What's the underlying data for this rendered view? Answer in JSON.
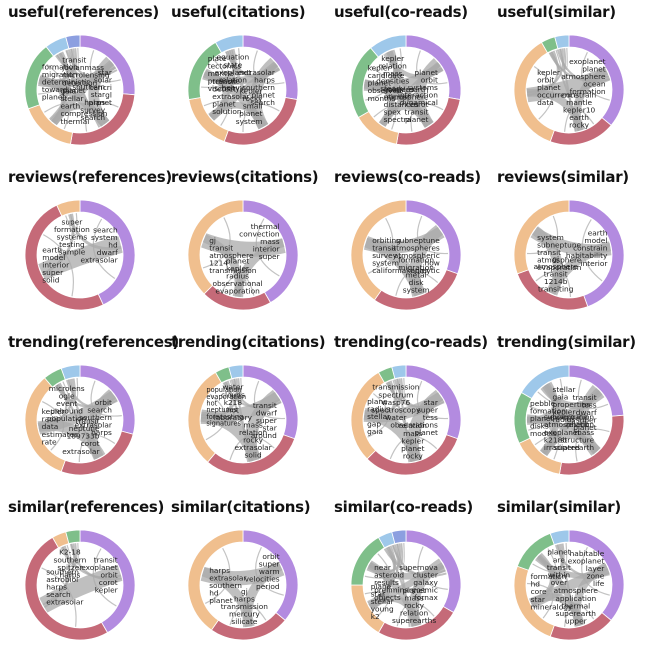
{
  "colors": {
    "purple": "#b38be0",
    "red": "#c56a78",
    "orange": "#f0bf8e",
    "green": "#7fbf8a",
    "blue": "#9ec8ea",
    "indigo": "#8c9fe0",
    "chord": "#aaaaaa"
  },
  "panels": [
    {
      "title": "useful(references)",
      "segments": [
        [
          "purple",
          0,
          95
        ],
        [
          "red",
          95,
          190
        ],
        [
          "orange",
          190,
          250
        ],
        [
          "green",
          250,
          322
        ],
        [
          "blue",
          322,
          345
        ],
        [
          "indigo",
          345,
          360
        ]
      ],
      "labels": [
        {
          "lines": [
            "star",
            "solar",
            "cancri",
            "gl",
            "planet"
          ],
          "a": 55
        },
        {
          "lines": [
            "southern",
            "star",
            "harps",
            "survey",
            "search"
          ],
          "a": 140
        },
        {
          "lines": [
            "gaia",
            "stellar",
            "earth",
            "compression",
            "thermal"
          ],
          "a": 210
        },
        {
          "lines": [
            "formation",
            "migration",
            "deterministic",
            "toward",
            "planet"
          ],
          "a": 282
        },
        {
          "lines": [
            "transit",
            "jovianmass",
            "microlensing",
            "detection",
            "planet"
          ],
          "a": 333
        }
      ]
    },
    {
      "title": "useful(citations)",
      "segments": [
        [
          "purple",
          0,
          100
        ],
        [
          "red",
          100,
          200
        ],
        [
          "orange",
          200,
          260
        ],
        [
          "green",
          260,
          330
        ],
        [
          "blue",
          330,
          360
        ]
      ],
      "labels": [
        {
          "lines": [
            "extrasolar",
            "harps",
            "southern",
            "planet",
            "search"
          ],
          "a": 55
        },
        {
          "lines": [
            "kepler",
            "rocky",
            "small",
            "planet",
            "system"
          ],
          "a": 150
        },
        {
          "lines": [
            "transit",
            "detect",
            "extrasolar",
            "planet",
            "solution"
          ],
          "a": 232
        },
        {
          "lines": [
            "plate",
            "tectonics",
            "mantle",
            "pressure",
            "viscosity"
          ],
          "a": 295
        },
        {
          "lines": [
            "equation",
            "state",
            "exoplanet",
            "relation",
            "heavy"
          ],
          "a": 345
        }
      ]
    },
    {
      "title": "useful(co-reads)",
      "segments": [
        [
          "purple",
          0,
          100
        ],
        [
          "red",
          100,
          190
        ],
        [
          "orange",
          190,
          240
        ],
        [
          "green",
          240,
          320
        ],
        [
          "blue",
          320,
          360
        ]
      ],
      "labels": [
        {
          "lines": [
            "planet",
            "orbit",
            "systems",
            "interaction",
            "dynamical"
          ],
          "a": 55
        },
        {
          "lines": [
            "superearth",
            "atmosphere",
            "corot",
            "transit",
            "planet"
          ],
          "a": 145
        },
        {
          "lines": [
            "galaxies",
            "micron",
            "distances",
            "spex",
            "spectra"
          ],
          "a": 215
        },
        {
          "lines": [
            "kepler",
            "candidate",
            "planet",
            "observed",
            "months"
          ],
          "a": 280
        },
        {
          "lines": [
            "kepler",
            "relation",
            "mass",
            "densities",
            "steady"
          ],
          "a": 340
        }
      ]
    },
    {
      "title": "useful(similar)",
      "segments": [
        [
          "purple",
          0,
          130
        ],
        [
          "red",
          130,
          200
        ],
        [
          "orange",
          200,
          330
        ],
        [
          "green",
          330,
          345
        ],
        [
          "blue",
          345,
          360
        ]
      ],
      "labels": [
        {
          "lines": [
            "exoplanet",
            "planet",
            "atmosphere",
            "ocean",
            "formation"
          ],
          "a": 70
        },
        {
          "lines": [
            "constrain",
            "mantle",
            "kepler10",
            "earth",
            "rocky"
          ],
          "a": 165
        },
        {
          "lines": [
            "kepler",
            "orbit",
            "planet",
            "occurrence",
            "data"
          ],
          "a": 305
        }
      ]
    },
    {
      "title": "reviews(references)",
      "segments": [
        [
          "purple",
          0,
          155
        ],
        [
          "red",
          155,
          335
        ],
        [
          "orange",
          335,
          360
        ]
      ],
      "labels": [
        {
          "lines": [
            "search",
            "system",
            "hd",
            "dwarf",
            "extrasolar"
          ],
          "a": 75
        },
        {
          "lines": [
            "earth",
            "model",
            "interior",
            "super",
            "solid"
          ],
          "a": 255
        },
        {
          "lines": [
            "super",
            "formation",
            "systems",
            "testing",
            "sample"
          ],
          "a": 348
        }
      ]
    },
    {
      "title": "reviews(citations)",
      "segments": [
        [
          "purple",
          0,
          150
        ],
        [
          "red",
          150,
          225
        ],
        [
          "orange",
          225,
          360
        ]
      ],
      "labels": [
        {
          "lines": [
            "thermal",
            "convection",
            "mass",
            "interior",
            "super"
          ],
          "a": 70
        },
        {
          "lines": [
            "planet",
            "kepler",
            "radius",
            "observational",
            "evaporation"
          ],
          "a": 188
        },
        {
          "lines": [
            "gj",
            "transit",
            "atmosphere",
            "1214",
            "transmission"
          ],
          "a": 300
        }
      ]
    },
    {
      "title": "reviews(co-reads)",
      "segments": [
        [
          "purple",
          0,
          110
        ],
        [
          "red",
          110,
          215
        ],
        [
          "orange",
          215,
          360
        ]
      ],
      "labels": [
        {
          "lines": [
            "subneptune",
            "atmospheres",
            "atmospheric",
            "how",
            "analytic"
          ],
          "a": 60
        },
        {
          "lines": [
            "formation",
            "migration",
            "metal",
            "disk",
            "system"
          ],
          "a": 165
        },
        {
          "lines": [
            "orbiting",
            "transit",
            "survey",
            "system",
            "californiakepler"
          ],
          "a": 300
        }
      ]
    },
    {
      "title": "reviews(similar)",
      "segments": [
        [
          "purple",
          0,
          160
        ],
        [
          "red",
          160,
          250
        ],
        [
          "orange",
          250,
          360
        ]
      ],
      "labels": [
        {
          "lines": [
            "earth",
            "model",
            "constrain",
            "habitability",
            "interior"
          ],
          "a": 80
        },
        {
          "lines": [
            "gj",
            "atmosphere",
            "transit",
            "1214b",
            "transiting"
          ],
          "a": 200
        },
        {
          "lines": [
            "system",
            "subneptune",
            "transit",
            "atmosphere",
            "evaporation"
          ],
          "a": 305
        }
      ]
    },
    {
      "title": "trending(references)",
      "segments": [
        [
          "purple",
          0,
          105
        ],
        [
          "red",
          105,
          200
        ],
        [
          "orange",
          200,
          320
        ],
        [
          "green",
          320,
          340
        ],
        [
          "blue",
          340,
          360
        ]
      ],
      "labels": [
        {
          "lines": [
            "orbit",
            "search",
            "southern",
            "extrasolar",
            "harps"
          ],
          "a": 55
        },
        {
          "lines": [
            "transit",
            "neptune",
            "189733b",
            "corot",
            "extrasolar"
          ],
          "a": 150
        },
        {
          "lines": [
            "kepler",
            "radii",
            "data",
            "estimates",
            "rate"
          ],
          "a": 260
        },
        {
          "lines": [
            "microlens",
            "ogle",
            "event",
            "unbound",
            "population"
          ],
          "a": 340
        }
      ]
    },
    {
      "title": "trending(citations)",
      "segments": [
        [
          "purple",
          0,
          110
        ],
        [
          "red",
          110,
          220
        ],
        [
          "orange",
          220,
          330
        ],
        [
          "green",
          330,
          345
        ],
        [
          "blue",
          345,
          360
        ]
      ],
      "labels": [
        {
          "lines": [
            "transit",
            "dwarf",
            "super",
            "star",
            "around"
          ],
          "a": 60
        },
        {
          "lines": [
            "mass",
            "relation",
            "rocky",
            "extrasolar",
            "solid"
          ],
          "a": 165
        },
        {
          "lines": [
            "population",
            "evaporation",
            "hot",
            "neptunes",
            "forecasting",
            "signatures"
          ],
          "a": 290
        },
        {
          "lines": [
            "water",
            "clouds",
            "k218",
            "hot",
            "laboratory"
          ],
          "a": 345
        }
      ]
    },
    {
      "title": "trending(co-reads)",
      "segments": [
        [
          "purple",
          0,
          110
        ],
        [
          "red",
          110,
          225
        ],
        [
          "orange",
          225,
          330
        ],
        [
          "green",
          330,
          345
        ],
        [
          "blue",
          345,
          360
        ]
      ],
      "labels": [
        {
          "lines": [
            "star",
            "super",
            "tess",
            "observations",
            "planet"
          ],
          "a": 55
        },
        {
          "lines": [
            "relation",
            "mass",
            "kepler",
            "planet",
            "rocky"
          ],
          "a": 170
        },
        {
          "lines": [
            "plane",
            "radius",
            "stellar",
            "gap",
            "gaia"
          ],
          "a": 275
        },
        {
          "lines": [
            "transmission",
            "spectrum",
            "wasp76",
            "spectroscopy",
            "water"
          ],
          "a": 345
        }
      ]
    },
    {
      "title": "trending(similar)",
      "segments": [
        [
          "purple",
          0,
          85
        ],
        [
          "red",
          85,
          190
        ],
        [
          "orange",
          190,
          245
        ],
        [
          "green",
          245,
          300
        ],
        [
          "blue",
          300,
          360
        ]
      ],
      "labels": [
        {
          "lines": [
            "transit",
            "tess",
            "dwarf",
            "super",
            "planet"
          ],
          "a": 45
        },
        {
          "lines": [
            "evaporation",
            "relation",
            "mass",
            "structure",
            "superearth"
          ],
          "a": 140
        },
        {
          "lines": [
            "subneptune",
            "atmospheric",
            "exoplanet",
            "k218b",
            "irradiated"
          ],
          "a": 220
        },
        {
          "lines": [
            "pebble",
            "formation",
            "planet",
            "disks",
            "models"
          ],
          "a": 272
        },
        {
          "lines": [
            "stellar",
            "gaia",
            "properties",
            "kepler",
            "radius"
          ],
          "a": 335
        }
      ]
    },
    {
      "title": "similar(references)",
      "segments": [
        [
          "purple",
          0,
          150
        ],
        [
          "red",
          150,
          330
        ],
        [
          "orange",
          330,
          345
        ],
        [
          "green",
          345,
          360
        ]
      ],
      "labels": [
        {
          "lines": [
            "transit",
            "exoplanet",
            "orbit",
            "corot",
            "kepler"
          ],
          "a": 75
        },
        {
          "lines": [
            "southern",
            "astrobiol",
            "harps",
            "search",
            "extrasolar"
          ],
          "a": 240
        },
        {
          "lines": [
            "K2-18",
            "southern",
            "spitzer",
            "harps"
          ],
          "a": 345
        }
      ]
    },
    {
      "title": "similar(citations)",
      "segments": [
        [
          "purple",
          0,
          130
        ],
        [
          "red",
          130,
          215
        ],
        [
          "orange",
          215,
          360
        ]
      ],
      "labels": [
        {
          "lines": [
            "orbit",
            "super",
            "warm",
            "velocities",
            "period"
          ],
          "a": 70
        },
        {
          "lines": [
            "gj",
            "harps",
            "transmission",
            "mercury",
            "silicate"
          ],
          "a": 178
        },
        {
          "lines": [
            "harps",
            "extrasolar",
            "southern",
            "hd",
            "planet"
          ],
          "a": 300
        }
      ]
    },
    {
      "title": "similar(co-reads)",
      "segments": [
        [
          "purple",
          0,
          120
        ],
        [
          "red",
          120,
          210
        ],
        [
          "orange",
          210,
          270
        ],
        [
          "green",
          270,
          330
        ],
        [
          "blue",
          330,
          345
        ],
        [
          "indigo",
          345,
          360
        ]
      ],
      "labels": [
        {
          "lines": [
            "supernova",
            "cluster",
            "galaxy",
            "cosmic",
            "fornax"
          ],
          "a": 55
        },
        {
          "lines": [
            "planet",
            "mass",
            "rocky",
            "relation",
            "superearths"
          ],
          "a": 168
        },
        {
          "lines": [
            "plane",
            "star",
            "stellar",
            "young",
            "k2"
          ],
          "a": 245
        },
        {
          "lines": [
            "near",
            "asteroid",
            "results",
            "preliminary",
            "objects"
          ],
          "a": 305
        }
      ]
    },
    {
      "title": "similar(similar)",
      "segments": [
        [
          "purple",
          0,
          130
        ],
        [
          "red",
          130,
          200
        ],
        [
          "orange",
          200,
          290
        ],
        [
          "green",
          290,
          340
        ],
        [
          "blue",
          340,
          360
        ]
      ],
      "labels": [
        {
          "lines": [
            "habitable",
            "exoplanet",
            "layer",
            "zone",
            "life"
          ],
          "a": 65
        },
        {
          "lines": [
            "atmosphere",
            "application",
            "thermal",
            "superearth",
            "upper"
          ],
          "a": 170
        },
        {
          "lines": [
            "formation",
            "hd",
            "core",
            "star",
            "mineralogy"
          ],
          "a": 260
        },
        {
          "lines": [
            "planet",
            "are",
            "transit",
            "within",
            "over"
          ],
          "a": 345
        }
      ]
    }
  ]
}
